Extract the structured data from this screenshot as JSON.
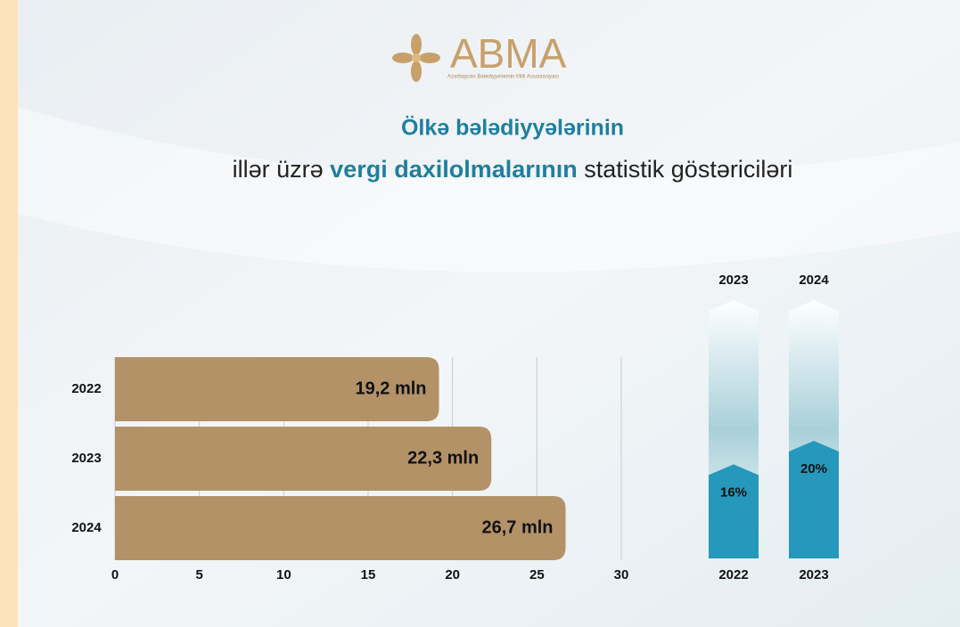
{
  "logo": {
    "name": "ABMA",
    "subtitle": "Azərbaycan Bələdiyyələrinin Milli Assosiasiyası"
  },
  "title": {
    "line1": "Ölkə bələdiyyələrinin",
    "line2": [
      "illər üzrə ",
      "vergi daxilolmalarının",
      " statistik göstəriciləri"
    ]
  },
  "chart_data": [
    {
      "type": "bar",
      "orientation": "horizontal",
      "categories": [
        "2022",
        "2023",
        "2024"
      ],
      "values": [
        19.2,
        22.3,
        26.7
      ],
      "value_labels": [
        "19,2 mln",
        "22,3 mln",
        "26,7 mln"
      ],
      "color": "#b39268",
      "xlim": [
        0,
        30
      ],
      "xticks": [
        0,
        5,
        10,
        15,
        20,
        25,
        30
      ],
      "grid": true
    },
    {
      "type": "growth",
      "start_labels": [
        "2022",
        "2023"
      ],
      "end_labels": [
        "2023",
        "2024"
      ],
      "values": [
        16,
        20
      ],
      "value_labels": [
        "16%",
        "20%"
      ],
      "color": "#2598bb"
    }
  ]
}
